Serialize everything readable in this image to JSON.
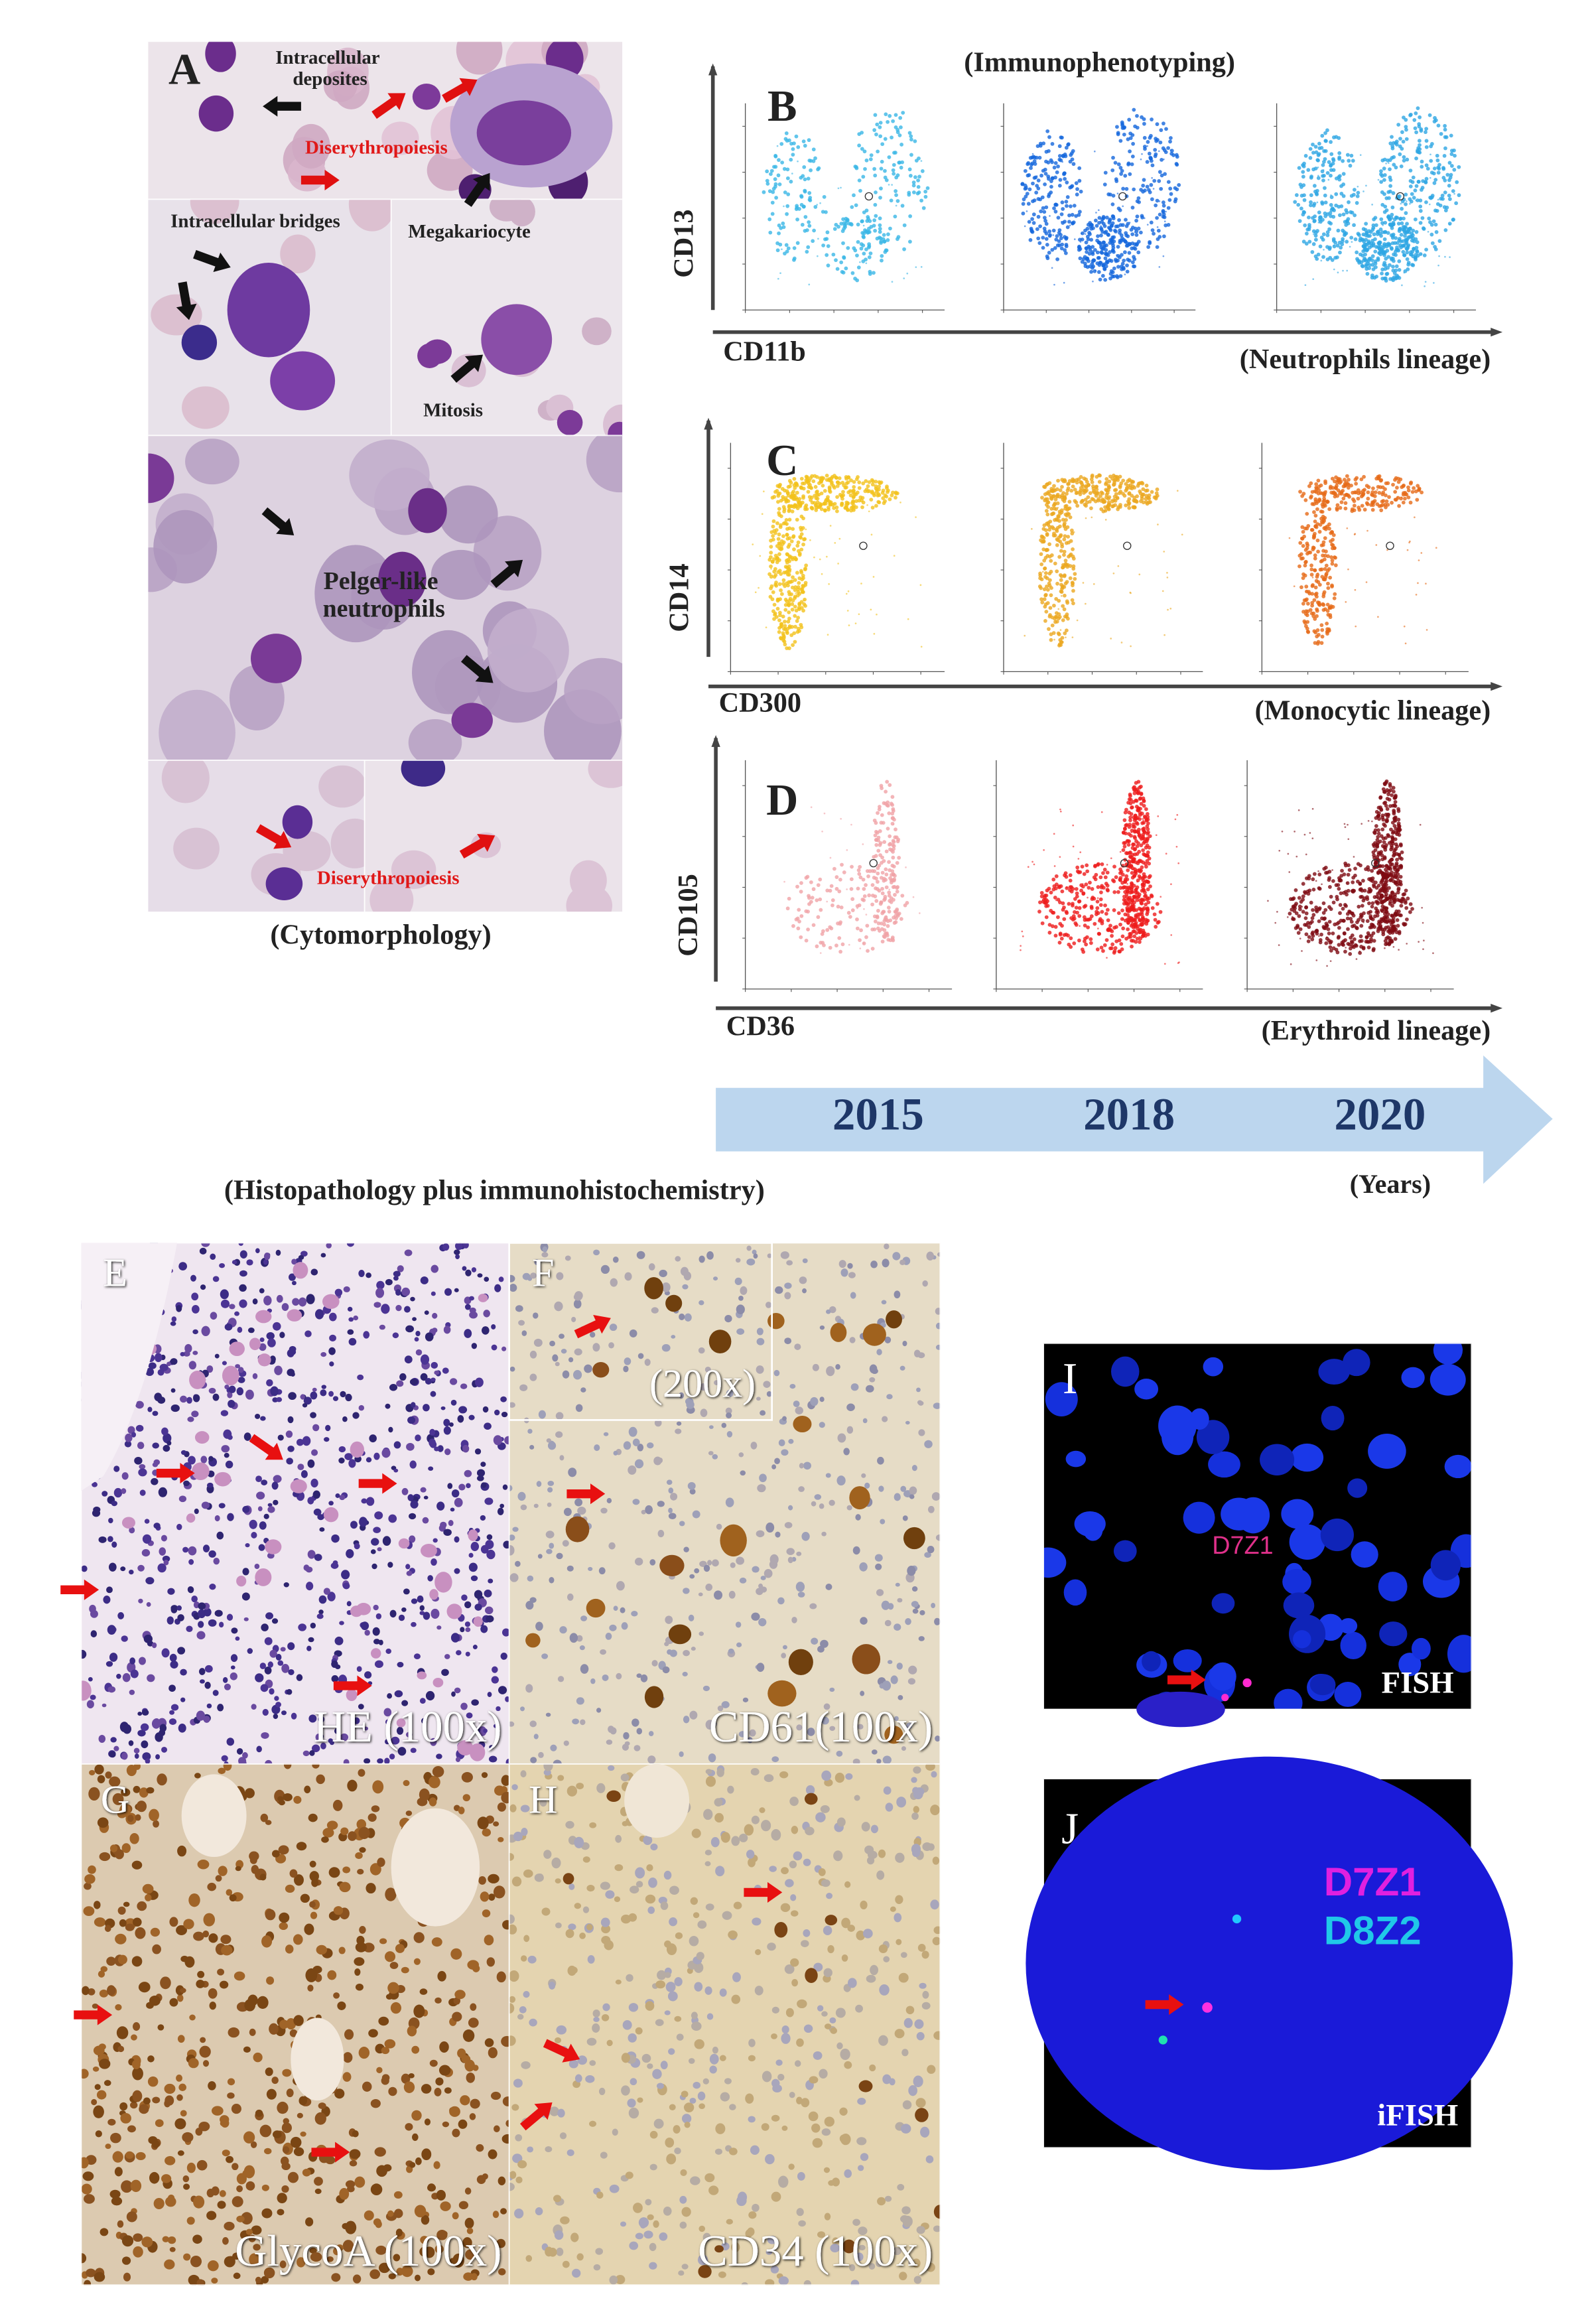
{
  "panel_a": {
    "label": "A",
    "annotations": {
      "intracellular_deposites": "Intracellular deposites",
      "diserythropoiesis_top": "Diserythropoiesis",
      "intracellular_bridges": "Intracellular bridges",
      "megakariocyte": "Megakariocyte",
      "mitosis": "Mitosis",
      "pelger": "Pelger-like neutrophils",
      "diserythropoiesis_bottom": "Diserythropoiesis"
    },
    "caption": "(Cytomorphology)"
  },
  "immunophenotyping": {
    "title": "(Immunophenotyping)",
    "rows": [
      {
        "label": "B",
        "y_axis": "CD13",
        "x_axis": "CD11b",
        "lineage": "(Neutrophils lineage)"
      },
      {
        "label": "C",
        "y_axis": "CD14",
        "x_axis": "CD300",
        "lineage": "(Monocytic lineage)"
      },
      {
        "label": "D",
        "y_axis": "CD105",
        "x_axis": "CD36",
        "lineage": "(Erythroid lineage)"
      }
    ]
  },
  "timeline": {
    "years": [
      "2015",
      "2018",
      "2020"
    ],
    "unit": "(Years)"
  },
  "histopathology": {
    "title": "(Histopathology plus immunohistochemistry)",
    "panels": [
      {
        "label": "E",
        "caption": "HE (100x)"
      },
      {
        "label": "F",
        "caption": "CD61(100x)",
        "inset": "(200x)"
      },
      {
        "label": "G",
        "caption": "GlycoA (100x)"
      },
      {
        "label": "H",
        "caption": "CD34 (100x)"
      }
    ]
  },
  "fish": {
    "panels": [
      {
        "label": "I",
        "probes": [
          "D7Z1"
        ],
        "caption": "FISH"
      },
      {
        "label": "J",
        "probes": [
          "D7Z1",
          "D8Z2"
        ],
        "caption": "iFISH"
      }
    ]
  }
}
